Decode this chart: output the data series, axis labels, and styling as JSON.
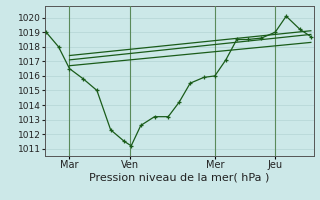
{
  "title": "Pression niveau de la mer( hPa )",
  "background_color": "#cce8e8",
  "grid_color": "#aacccc",
  "line_color": "#1a5c1a",
  "xlim": [
    0,
    9.8
  ],
  "ylim": [
    1010.5,
    1020.8
  ],
  "yticks": [
    1011,
    1012,
    1013,
    1014,
    1015,
    1016,
    1017,
    1018,
    1019,
    1020
  ],
  "xtick_positions": [
    0.9,
    3.1,
    6.2,
    8.4
  ],
  "xtick_labels": [
    "Mar",
    "Ven",
    "Mer",
    "Jeu"
  ],
  "series1_x": [
    0.05,
    0.5,
    0.9,
    1.4,
    1.9,
    2.4,
    2.9,
    3.15,
    3.5,
    4.0,
    4.5,
    4.9,
    5.3,
    5.8,
    6.2,
    6.6,
    7.0,
    7.4,
    7.9,
    8.4,
    8.8,
    9.3,
    9.7
  ],
  "series1_y": [
    1019.0,
    1018.0,
    1016.5,
    1015.8,
    1015.0,
    1012.3,
    1011.5,
    1011.2,
    1012.6,
    1013.2,
    1013.2,
    1014.2,
    1015.5,
    1015.9,
    1016.0,
    1017.1,
    1018.5,
    1018.5,
    1018.6,
    1019.0,
    1020.1,
    1019.2,
    1018.7
  ],
  "series2_x": [
    0.9,
    9.7
  ],
  "series2_y": [
    1016.7,
    1018.3
  ],
  "series3_x": [
    0.9,
    9.7
  ],
  "series3_y": [
    1017.1,
    1018.85
  ],
  "series4_x": [
    0.9,
    9.7
  ],
  "series4_y": [
    1017.4,
    1019.1
  ],
  "vline_positions": [
    0.9,
    3.1,
    6.2,
    8.4
  ],
  "ylabel_fontsize": 6.5,
  "xlabel_fontsize": 8.0,
  "xtick_fontsize": 7.0
}
